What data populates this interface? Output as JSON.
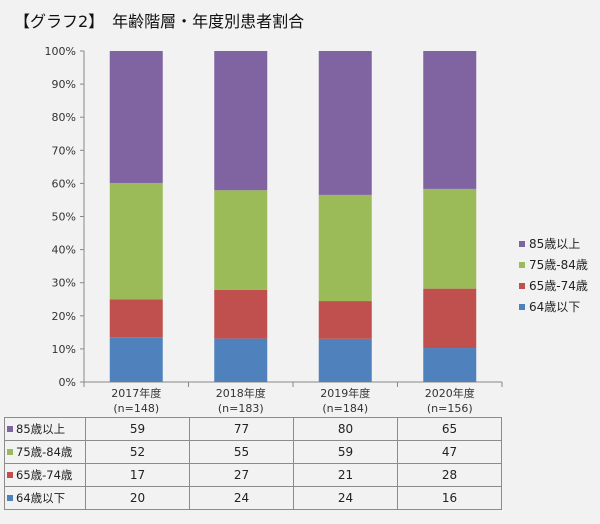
{
  "title": "【グラフ2】　年齢階層・年度別患者割合",
  "chart_data": {
    "type": "stacked-bar-100",
    "categories": [
      "2017年度",
      "2018年度",
      "2019年度",
      "2020年度"
    ],
    "category_counts": [
      "(n=148)",
      "(n=183)",
      "(n=184)",
      "(n=156)"
    ],
    "y_ticks": [
      "0%",
      "10%",
      "20%",
      "30%",
      "40%",
      "50%",
      "60%",
      "70%",
      "80%",
      "90%",
      "100%"
    ],
    "ylim": [
      0,
      100
    ],
    "series": [
      {
        "name": "64歳以下",
        "color": "#4f81bd",
        "values": [
          20,
          24,
          24,
          16
        ]
      },
      {
        "name": "65歳-74歳",
        "color": "#c0504d",
        "values": [
          17,
          27,
          21,
          28
        ]
      },
      {
        "name": "75歳-84歳",
        "color": "#9bbb59",
        "values": [
          52,
          55,
          59,
          47
        ]
      },
      {
        "name": "85歳以上",
        "color": "#8064a2",
        "values": [
          59,
          77,
          80,
          65
        ]
      }
    ],
    "legend_position": "right"
  }
}
